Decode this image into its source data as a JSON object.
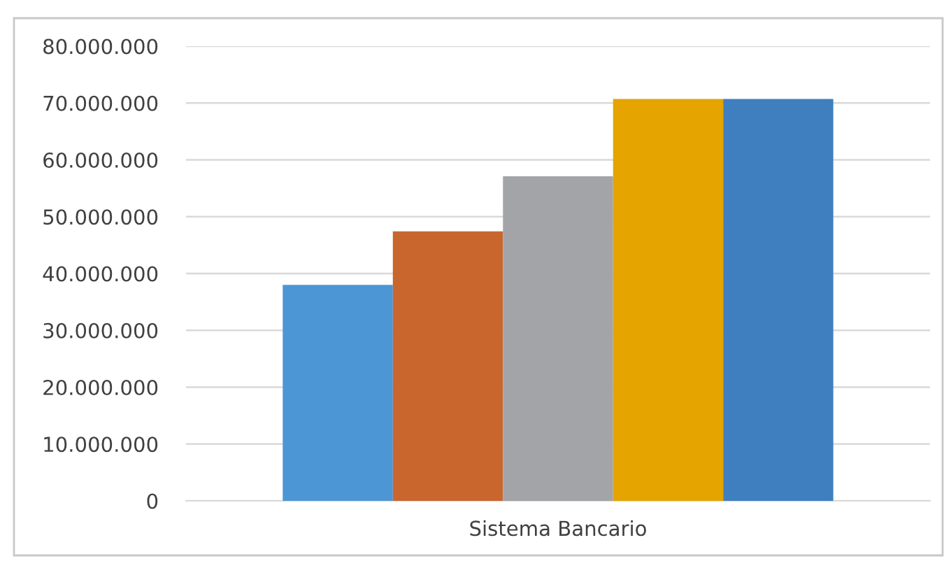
{
  "chart_data": {
    "type": "bar",
    "categories": [
      "Sistema Bancario"
    ],
    "series": [
      {
        "color": "#4d96d6",
        "values": [
          38000000
        ]
      },
      {
        "color": "#c8662e",
        "values": [
          47400000
        ]
      },
      {
        "color": "#a2a4a8",
        "values": [
          57100000
        ]
      },
      {
        "color": "#e5a400",
        "values": [
          70700000
        ]
      },
      {
        "color": "#3f7fc0",
        "values": [
          70700000
        ]
      }
    ],
    "ylim": [
      0,
      80000000
    ],
    "yticks": [
      0,
      {
        "value": 10000000,
        "label": "10.000.000"
      },
      {
        "value": 20000000,
        "label": "20.000.000"
      },
      {
        "value": 30000000,
        "label": "30.000.000"
      },
      {
        "value": 40000000,
        "label": "40.000.000"
      },
      {
        "value": 50000000,
        "label": "50.000.000"
      },
      {
        "value": 60000000,
        "label": "60.000.000"
      },
      {
        "value": 70000000,
        "label": "70.000.000"
      },
      {
        "value": 80000000,
        "label": "80.000.000"
      }
    ],
    "grid": "y"
  }
}
